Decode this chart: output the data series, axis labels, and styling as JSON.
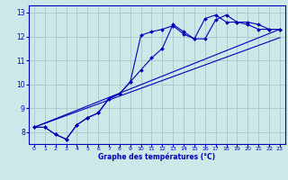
{
  "xlabel": "Graphe des températures (°C)",
  "bg_color": "#cce8e8",
  "grid_color": "#aacccc",
  "line_color": "#0000bb",
  "xlim": [
    -0.5,
    23.5
  ],
  "ylim": [
    7.5,
    13.3
  ],
  "xticks": [
    0,
    1,
    2,
    3,
    4,
    5,
    6,
    7,
    8,
    9,
    10,
    11,
    12,
    13,
    14,
    15,
    16,
    17,
    18,
    19,
    20,
    21,
    22,
    23
  ],
  "yticks": [
    8,
    9,
    10,
    11,
    12,
    13
  ],
  "line1_x": [
    0,
    1,
    2,
    3,
    4,
    5,
    6,
    7,
    8,
    9,
    10,
    11,
    12,
    13,
    14,
    15,
    16,
    17,
    18,
    19,
    20,
    21,
    22,
    23
  ],
  "line1_y": [
    8.2,
    8.2,
    7.9,
    7.7,
    8.3,
    8.6,
    8.8,
    9.4,
    9.6,
    10.1,
    10.6,
    11.1,
    11.5,
    12.5,
    12.2,
    11.9,
    11.9,
    12.7,
    12.9,
    12.6,
    12.6,
    12.5,
    12.3,
    12.3
  ],
  "line2_x": [
    0,
    1,
    2,
    3,
    4,
    5,
    6,
    7,
    8,
    9,
    10,
    11,
    12,
    13,
    14,
    15,
    16,
    17,
    18,
    19,
    20,
    21,
    22,
    23
  ],
  "line2_y": [
    8.2,
    8.2,
    7.9,
    7.7,
    8.3,
    8.6,
    8.8,
    9.4,
    9.6,
    10.1,
    12.05,
    12.2,
    12.3,
    12.45,
    12.1,
    11.9,
    12.75,
    12.9,
    12.6,
    12.6,
    12.5,
    12.3,
    12.3,
    12.3
  ],
  "line3_x": [
    0,
    23
  ],
  "line3_y": [
    8.2,
    12.3
  ],
  "line4_x": [
    0,
    23
  ],
  "line4_y": [
    8.2,
    11.95
  ]
}
